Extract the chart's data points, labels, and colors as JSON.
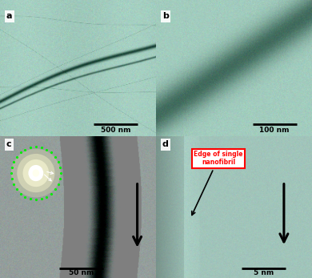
{
  "fig_width": 3.9,
  "fig_height": 3.47,
  "dpi": 100,
  "panels": {
    "a": {
      "label": "a",
      "scale_bar_text": "500 nm"
    },
    "b": {
      "label": "b",
      "scale_bar_text": "100 nm"
    },
    "c": {
      "label": "c",
      "scale_bar_text": "50 nm"
    },
    "d": {
      "label": "d",
      "scale_bar_text": "5 nm",
      "annotation_text": "Edge of single\nnanofibril"
    }
  },
  "border_color_green": "#00cc00",
  "border_color_green_dotted": "#00cc00",
  "border_width": 1.5,
  "label_font_size": 8,
  "scale_font_size": 6.5,
  "bg_green_r": 0.635,
  "bg_green_g": 0.8,
  "bg_green_b": 0.745,
  "bg_gray_r": 0.58,
  "bg_gray_g": 0.62,
  "bg_gray_b": 0.61
}
